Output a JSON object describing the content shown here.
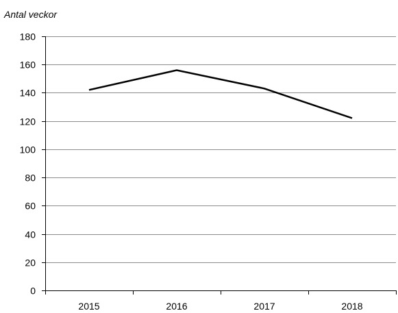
{
  "chart_data": {
    "type": "line",
    "title": "",
    "xlabel": "",
    "ylabel": "Antal veckor",
    "categories": [
      "2015",
      "2016",
      "2017",
      "2018"
    ],
    "series": [
      {
        "values": [
          142,
          156,
          143,
          122
        ],
        "color": "#000000"
      }
    ],
    "ylim": [
      0,
      180
    ],
    "yticks": [
      0,
      20,
      40,
      60,
      80,
      100,
      120,
      140,
      160,
      180
    ],
    "grid": true,
    "legend": "none"
  }
}
